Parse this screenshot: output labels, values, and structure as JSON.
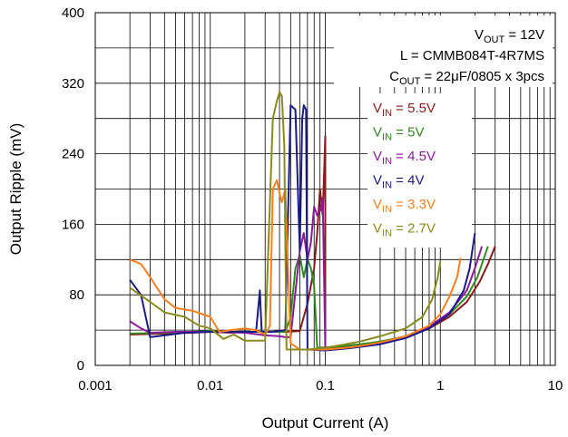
{
  "chart_data": {
    "type": "line",
    "xlabel": "Output Current (A)",
    "ylabel": "Output Ripple (mV)",
    "x_scale": "log",
    "xlim": [
      0.001,
      10
    ],
    "ylim": [
      0,
      400
    ],
    "x_ticks": [
      {
        "value": 0.001,
        "label": "0.001"
      },
      {
        "value": 0.01,
        "label": "0.01"
      },
      {
        "value": 0.1,
        "label": "0.1"
      },
      {
        "value": 1,
        "label": "1"
      },
      {
        "value": 10,
        "label": "10"
      }
    ],
    "y_ticks": [
      {
        "value": 0,
        "label": "0"
      },
      {
        "value": 80,
        "label": "80"
      },
      {
        "value": 160,
        "label": "160"
      },
      {
        "value": 240,
        "label": "240"
      },
      {
        "value": 320,
        "label": "320"
      },
      {
        "value": 400,
        "label": "400"
      }
    ],
    "grid": true,
    "legend_position": "right",
    "annotation": {
      "vout": {
        "main": "V",
        "sub": "OUT",
        "rest": " = 12V"
      },
      "inductor": "L = CMMB084T-4R7MS",
      "cout": {
        "main": "C",
        "sub": "OUT",
        "rest": " = 22μF/0805 x 3pcs"
      }
    },
    "series": [
      {
        "name": {
          "main": "V",
          "sub": "IN",
          "rest": " = 5.5V"
        },
        "color": "#8b1a1a",
        "points": [
          [
            0.002,
            35
          ],
          [
            0.004,
            36
          ],
          [
            0.007,
            37
          ],
          [
            0.01,
            38
          ],
          [
            0.015,
            37
          ],
          [
            0.02,
            38
          ],
          [
            0.03,
            38
          ],
          [
            0.045,
            38
          ],
          [
            0.06,
            39
          ],
          [
            0.07,
            70
          ],
          [
            0.08,
            110
          ],
          [
            0.085,
            150
          ],
          [
            0.09,
            200
          ],
          [
            0.095,
            170
          ],
          [
            0.1,
            260
          ],
          [
            0.1,
            20
          ],
          [
            0.15,
            21
          ],
          [
            0.2,
            23
          ],
          [
            0.3,
            26
          ],
          [
            0.5,
            32
          ],
          [
            0.8,
            42
          ],
          [
            1.2,
            55
          ],
          [
            1.7,
            72
          ],
          [
            2.2,
            95
          ],
          [
            2.6,
            115
          ],
          [
            3.0,
            135
          ]
        ]
      },
      {
        "name": {
          "main": "V",
          "sub": "IN",
          "rest": " = 5V"
        },
        "color": "#2e8b1e",
        "points": [
          [
            0.002,
            36
          ],
          [
            0.004,
            37
          ],
          [
            0.007,
            38
          ],
          [
            0.01,
            39
          ],
          [
            0.02,
            38
          ],
          [
            0.03,
            38
          ],
          [
            0.04,
            38
          ],
          [
            0.045,
            38
          ],
          [
            0.05,
            55
          ],
          [
            0.055,
            110
          ],
          [
            0.06,
            125
          ],
          [
            0.065,
            100
          ],
          [
            0.07,
            120
          ],
          [
            0.075,
            110
          ],
          [
            0.08,
            90
          ],
          [
            0.085,
            20
          ],
          [
            0.12,
            21
          ],
          [
            0.2,
            24
          ],
          [
            0.3,
            27
          ],
          [
            0.5,
            33
          ],
          [
            0.8,
            44
          ],
          [
            1.2,
            58
          ],
          [
            1.7,
            78
          ],
          [
            2.1,
            100
          ],
          [
            2.6,
            135
          ]
        ]
      },
      {
        "name": {
          "main": "V",
          "sub": "IN",
          "rest": " = 4.5V"
        },
        "color": "#8b1a9b",
        "points": [
          [
            0.002,
            50
          ],
          [
            0.0025,
            42
          ],
          [
            0.003,
            37
          ],
          [
            0.005,
            38
          ],
          [
            0.01,
            38
          ],
          [
            0.02,
            37
          ],
          [
            0.03,
            34
          ],
          [
            0.04,
            33
          ],
          [
            0.045,
            32
          ],
          [
            0.05,
            32
          ],
          [
            0.06,
            130
          ],
          [
            0.065,
            150
          ],
          [
            0.07,
            120
          ],
          [
            0.075,
            140
          ],
          [
            0.08,
            180
          ],
          [
            0.085,
            170
          ],
          [
            0.09,
            175
          ],
          [
            0.095,
            190
          ],
          [
            0.1,
            18
          ],
          [
            0.15,
            20
          ],
          [
            0.2,
            22
          ],
          [
            0.3,
            25
          ],
          [
            0.5,
            32
          ],
          [
            0.8,
            44
          ],
          [
            1.2,
            60
          ],
          [
            1.7,
            85
          ],
          [
            2.0,
            110
          ],
          [
            2.3,
            135
          ]
        ]
      },
      {
        "name": {
          "main": "V",
          "sub": "IN",
          "rest": " = 4V"
        },
        "color": "#1a1a8b",
        "points": [
          [
            0.002,
            97
          ],
          [
            0.0025,
            80
          ],
          [
            0.003,
            32
          ],
          [
            0.004,
            34
          ],
          [
            0.006,
            37
          ],
          [
            0.01,
            38
          ],
          [
            0.015,
            38
          ],
          [
            0.025,
            38
          ],
          [
            0.027,
            85
          ],
          [
            0.028,
            38
          ],
          [
            0.035,
            38
          ],
          [
            0.045,
            40
          ],
          [
            0.05,
            295
          ],
          [
            0.055,
            290
          ],
          [
            0.06,
            130
          ],
          [
            0.063,
            280
          ],
          [
            0.065,
            295
          ],
          [
            0.068,
            290
          ],
          [
            0.07,
            18
          ],
          [
            0.1,
            17
          ],
          [
            0.15,
            19
          ],
          [
            0.2,
            21
          ],
          [
            0.3,
            24
          ],
          [
            0.5,
            31
          ],
          [
            0.8,
            42
          ],
          [
            1.2,
            58
          ],
          [
            1.6,
            85
          ],
          [
            1.8,
            110
          ],
          [
            2.0,
            150
          ]
        ]
      },
      {
        "name": {
          "main": "V",
          "sub": "IN",
          "rest": " = 3.3V"
        },
        "color": "#ff7f1a",
        "points": [
          [
            0.002,
            120
          ],
          [
            0.0025,
            115
          ],
          [
            0.003,
            100
          ],
          [
            0.004,
            75
          ],
          [
            0.005,
            65
          ],
          [
            0.007,
            62
          ],
          [
            0.01,
            55
          ],
          [
            0.012,
            38
          ],
          [
            0.015,
            40
          ],
          [
            0.02,
            42
          ],
          [
            0.025,
            40
          ],
          [
            0.03,
            35
          ],
          [
            0.033,
            45
          ],
          [
            0.035,
            200
          ],
          [
            0.038,
            210
          ],
          [
            0.04,
            195
          ],
          [
            0.042,
            185
          ],
          [
            0.045,
            200
          ],
          [
            0.05,
            25
          ],
          [
            0.06,
            18
          ],
          [
            0.1,
            18
          ],
          [
            0.15,
            20
          ],
          [
            0.2,
            22
          ],
          [
            0.3,
            26
          ],
          [
            0.5,
            33
          ],
          [
            0.8,
            45
          ],
          [
            1.0,
            58
          ],
          [
            1.2,
            78
          ],
          [
            1.4,
            100
          ],
          [
            1.5,
            122
          ]
        ]
      },
      {
        "name": {
          "main": "V",
          "sub": "IN",
          "rest": " = 2.7V"
        },
        "color": "#8b8b1a",
        "points": [
          [
            0.002,
            88
          ],
          [
            0.003,
            72
          ],
          [
            0.004,
            60
          ],
          [
            0.006,
            55
          ],
          [
            0.008,
            45
          ],
          [
            0.01,
            42
          ],
          [
            0.013,
            30
          ],
          [
            0.016,
            35
          ],
          [
            0.02,
            28
          ],
          [
            0.025,
            28
          ],
          [
            0.03,
            28
          ],
          [
            0.035,
            280
          ],
          [
            0.038,
            300
          ],
          [
            0.04,
            310
          ],
          [
            0.042,
            305
          ],
          [
            0.044,
            250
          ],
          [
            0.046,
            18
          ],
          [
            0.07,
            18
          ],
          [
            0.1,
            20
          ],
          [
            0.15,
            24
          ],
          [
            0.2,
            27
          ],
          [
            0.3,
            33
          ],
          [
            0.5,
            42
          ],
          [
            0.7,
            55
          ],
          [
            0.85,
            75
          ],
          [
            0.95,
            100
          ],
          [
            1.0,
            118
          ]
        ]
      }
    ]
  }
}
